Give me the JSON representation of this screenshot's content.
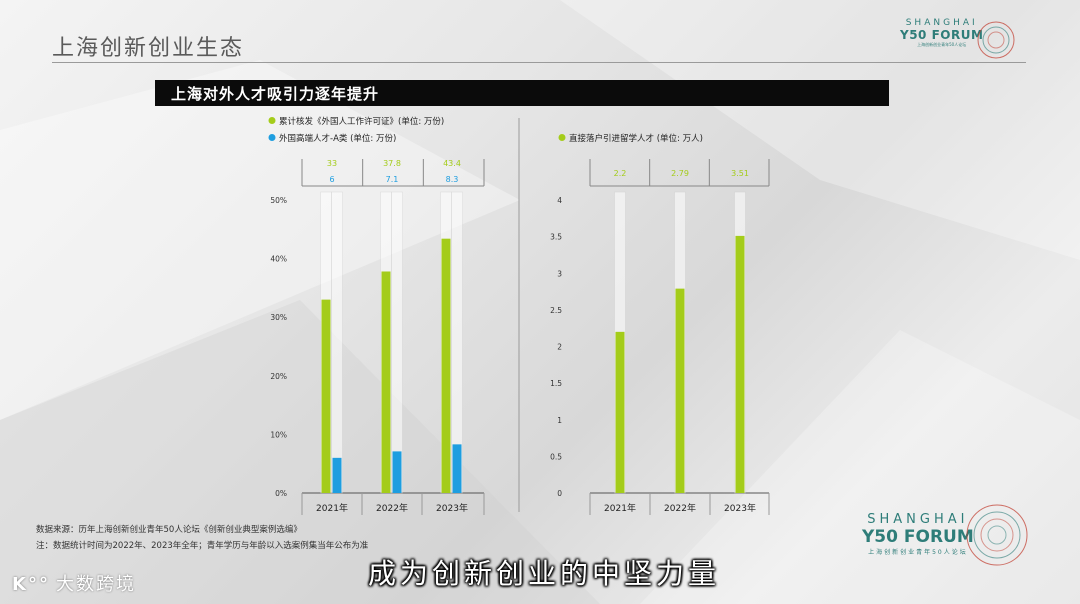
{
  "header": {
    "title": "上海创新创业生态",
    "logo": {
      "line1": "SHANGHAI",
      "line2": "Y50 FORUM",
      "line3": "上海创新创业青年50人论坛"
    }
  },
  "banner": {
    "title": "上海对外人才吸引力逐年提升"
  },
  "colors": {
    "green": "#a4cc1a",
    "blue": "#1e9ee0",
    "banner_bg": "#0b0b0b"
  },
  "chart_data": [
    {
      "type": "bar",
      "legend": [
        {
          "label": "累计核发《外国人工作许可证》(单位: 万份)",
          "color": "#a4cc1a"
        },
        {
          "label": "外国高端人才-A类 (单位: 万份)",
          "color": "#1e9ee0"
        }
      ],
      "categories": [
        "2021年",
        "2022年",
        "2023年"
      ],
      "series": [
        {
          "name": "累计核发《外国人工作许可证》(单位: 万份)",
          "values": [
            33,
            37.8,
            43.4
          ],
          "labels": [
            "33",
            "37.8",
            "43.4"
          ],
          "color": "#a4cc1a"
        },
        {
          "name": "外国高端人才-A类 (单位: 万份)",
          "values": [
            6,
            7.1,
            8.3
          ],
          "labels": [
            "6",
            "7.1",
            "8.3"
          ],
          "color": "#1e9ee0"
        }
      ],
      "ylim": [
        0,
        50
      ],
      "yticks": [
        0,
        10,
        20,
        30,
        40,
        50
      ],
      "ytick_labels": [
        "0%",
        "10%",
        "20%",
        "30%",
        "40%",
        "50%"
      ],
      "legend_position": "top-left"
    },
    {
      "type": "bar",
      "legend": [
        {
          "label": "直接落户引进留学人才 (单位: 万人)",
          "color": "#a4cc1a"
        }
      ],
      "categories": [
        "2021年",
        "2022年",
        "2023年"
      ],
      "series": [
        {
          "name": "直接落户引进留学人才 (单位: 万人)",
          "values": [
            2.2,
            2.79,
            3.51
          ],
          "labels": [
            "2.2",
            "2.79",
            "3.51"
          ],
          "color": "#a4cc1a"
        }
      ],
      "ylim": [
        0,
        4
      ],
      "yticks": [
        0,
        0.5,
        1,
        1.5,
        2,
        2.5,
        3,
        3.5,
        4
      ],
      "ytick_labels": [
        "0",
        "0.5",
        "1",
        "1.5",
        "2",
        "2.5",
        "3",
        "3.5",
        "4"
      ],
      "legend_position": "top-left"
    }
  ],
  "footer": {
    "source": "数据来源：历年上海创新创业青年50人论坛《创新创业典型案例选编》",
    "note": "注：数据统计时间为2022年、2023年全年；青年学历与年龄以入选案例集当年公布为准"
  },
  "caption": "成为创新创业的中坚力量",
  "watermark": {
    "icon": "K°°",
    "text": "大数跨境"
  }
}
